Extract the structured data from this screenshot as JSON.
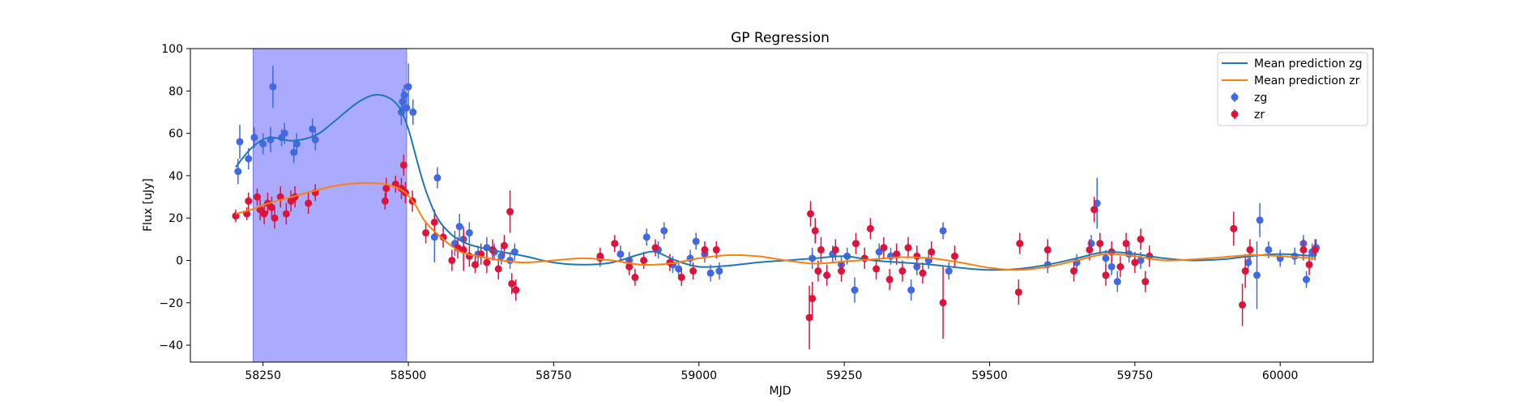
{
  "chart_data": {
    "type": "scatter",
    "title": "GP Regression",
    "xlabel": "MJD",
    "ylabel": "Flux [uJy]",
    "xlim": [
      58125,
      60160
    ],
    "ylim": [
      -48,
      100
    ],
    "xticks": [
      58250,
      58500,
      58750,
      59000,
      59250,
      59500,
      59750,
      60000
    ],
    "yticks": [
      -40,
      -20,
      0,
      20,
      40,
      60,
      80,
      100
    ],
    "grid": false,
    "legend_position": "top-right",
    "shaded_region": {
      "x_start": 58233,
      "x_end": 58497,
      "color": "#aaaaff"
    },
    "series": [
      {
        "name": "Mean prediction zg",
        "kind": "line",
        "color": "#1f77b4",
        "x": [
          58203,
          58230,
          58260,
          58300,
          58340,
          58370,
          58410,
          58440,
          58465,
          58485,
          58500,
          58515,
          58530,
          58550,
          58575,
          58600,
          58625,
          58660,
          58700,
          58750,
          58800,
          58850,
          58900,
          58925,
          58960,
          59000,
          59050,
          59100,
          59150,
          59200,
          59250,
          59300,
          59350,
          59400,
          59450,
          59500,
          59550,
          59600,
          59650,
          59700,
          59750,
          59800,
          59850,
          59900,
          59950,
          60000,
          60060
        ],
        "y": [
          44,
          53,
          58,
          56.5,
          59,
          65,
          74,
          78,
          77,
          72,
          62,
          47,
          33,
          20,
          12,
          8,
          6,
          4,
          2,
          -1,
          -2,
          -1,
          3,
          4,
          0,
          -3,
          -2.5,
          -1,
          0,
          1,
          2,
          0,
          -1,
          -2,
          -3.5,
          -4.5,
          -4,
          -2,
          1,
          4,
          3,
          1,
          0,
          0.5,
          2,
          3,
          2
        ]
      },
      {
        "name": "Mean prediction zr",
        "kind": "line",
        "color": "#ff7f0e",
        "x": [
          58203,
          58230,
          58260,
          58300,
          58340,
          58380,
          58420,
          58460,
          58490,
          58510,
          58530,
          58560,
          58590,
          58620,
          58660,
          58700,
          58750,
          58800,
          58850,
          58900,
          58950,
          59000,
          59050,
          59100,
          59150,
          59200,
          59250,
          59300,
          59350,
          59400,
          59450,
          59500,
          59550,
          59600,
          59650,
          59700,
          59750,
          59800,
          59850,
          59900,
          59950,
          60000,
          60060
        ],
        "y": [
          22,
          24,
          27,
          30,
          33,
          35.5,
          36.5,
          36,
          33,
          27,
          18,
          10,
          4,
          2,
          0,
          -1,
          0,
          1,
          0,
          -2,
          -1.5,
          1,
          2.5,
          2,
          0,
          -1.5,
          -0.5,
          0.5,
          1.5,
          1,
          -1,
          -3.5,
          -4.5,
          -3,
          0,
          3,
          2,
          0,
          0.5,
          1.5,
          2.5,
          2,
          1
        ]
      },
      {
        "name": "zg",
        "kind": "errorbar",
        "color": "#4169e1",
        "points": [
          {
            "x": 58207,
            "y": 42,
            "e": 6
          },
          {
            "x": 58210,
            "y": 56,
            "e": 8
          },
          {
            "x": 58225,
            "y": 48,
            "e": 5
          },
          {
            "x": 58235,
            "y": 58,
            "e": 5
          },
          {
            "x": 58250,
            "y": 55,
            "e": 5
          },
          {
            "x": 58263,
            "y": 57,
            "e": 6
          },
          {
            "x": 58267,
            "y": 82,
            "e": 10
          },
          {
            "x": 58282,
            "y": 58,
            "e": 4
          },
          {
            "x": 58287,
            "y": 60,
            "e": 5
          },
          {
            "x": 58303,
            "y": 51,
            "e": 5
          },
          {
            "x": 58308,
            "y": 55,
            "e": 5
          },
          {
            "x": 58335,
            "y": 62,
            "e": 5
          },
          {
            "x": 58340,
            "y": 57,
            "e": 5
          },
          {
            "x": 58488,
            "y": 70,
            "e": 6
          },
          {
            "x": 58490,
            "y": 75,
            "e": 6
          },
          {
            "x": 58493,
            "y": 78,
            "e": 5
          },
          {
            "x": 58497,
            "y": 72,
            "e": 7
          },
          {
            "x": 58500,
            "y": 82,
            "e": 11
          },
          {
            "x": 58508,
            "y": 70,
            "e": 6
          },
          {
            "x": 58545,
            "y": 11,
            "e": 12
          },
          {
            "x": 58550,
            "y": 39,
            "e": 5
          },
          {
            "x": 58580,
            "y": 8,
            "e": 6
          },
          {
            "x": 58588,
            "y": 16,
            "e": 6
          },
          {
            "x": 58595,
            "y": 10,
            "e": 6
          },
          {
            "x": 58605,
            "y": 13,
            "e": 5
          },
          {
            "x": 58620,
            "y": 3,
            "e": 4
          },
          {
            "x": 58635,
            "y": 6,
            "e": 5
          },
          {
            "x": 58648,
            "y": 4,
            "e": 4
          },
          {
            "x": 58660,
            "y": 2,
            "e": 4
          },
          {
            "x": 58675,
            "y": 0,
            "e": 4
          },
          {
            "x": 58683,
            "y": 4,
            "e": 4
          },
          {
            "x": 58830,
            "y": 1,
            "e": 4
          },
          {
            "x": 58865,
            "y": 3,
            "e": 4
          },
          {
            "x": 58880,
            "y": 0,
            "e": 4
          },
          {
            "x": 58910,
            "y": 11,
            "e": 4
          },
          {
            "x": 58930,
            "y": 5,
            "e": 4
          },
          {
            "x": 58940,
            "y": 14,
            "e": 4
          },
          {
            "x": 58955,
            "y": -2,
            "e": 4
          },
          {
            "x": 58965,
            "y": -4,
            "e": 4
          },
          {
            "x": 58985,
            "y": 1,
            "e": 4
          },
          {
            "x": 58995,
            "y": 9,
            "e": 4
          },
          {
            "x": 59010,
            "y": 3,
            "e": 4
          },
          {
            "x": 59020,
            "y": -6,
            "e": 4
          },
          {
            "x": 59035,
            "y": -5,
            "e": 4
          },
          {
            "x": 59195,
            "y": 1,
            "e": 5
          },
          {
            "x": 59230,
            "y": 3,
            "e": 4
          },
          {
            "x": 59245,
            "y": -2,
            "e": 4
          },
          {
            "x": 59255,
            "y": 2,
            "e": 4
          },
          {
            "x": 59268,
            "y": -14,
            "e": 6
          },
          {
            "x": 59310,
            "y": 4,
            "e": 4
          },
          {
            "x": 59330,
            "y": 2,
            "e": 4
          },
          {
            "x": 59365,
            "y": -14,
            "e": 5
          },
          {
            "x": 59375,
            "y": -3,
            "e": 4
          },
          {
            "x": 59395,
            "y": 0,
            "e": 4
          },
          {
            "x": 59420,
            "y": 14,
            "e": 4
          },
          {
            "x": 59430,
            "y": -5,
            "e": 4
          },
          {
            "x": 59600,
            "y": -2,
            "e": 4
          },
          {
            "x": 59650,
            "y": -1,
            "e": 4
          },
          {
            "x": 59675,
            "y": 8,
            "e": 4
          },
          {
            "x": 59685,
            "y": 27,
            "e": 12
          },
          {
            "x": 59700,
            "y": 1,
            "e": 4
          },
          {
            "x": 59710,
            "y": -3,
            "e": 4
          },
          {
            "x": 59720,
            "y": -10,
            "e": 5
          },
          {
            "x": 59740,
            "y": 3,
            "e": 4
          },
          {
            "x": 59760,
            "y": 0,
            "e": 4
          },
          {
            "x": 59945,
            "y": -1,
            "e": 4
          },
          {
            "x": 59960,
            "y": -7,
            "e": 16
          },
          {
            "x": 59965,
            "y": 19,
            "e": 8
          },
          {
            "x": 59980,
            "y": 5,
            "e": 4
          },
          {
            "x": 60000,
            "y": 1,
            "e": 4
          },
          {
            "x": 60025,
            "y": 2,
            "e": 4
          },
          {
            "x": 60040,
            "y": 8,
            "e": 4
          },
          {
            "x": 60045,
            "y": -9,
            "e": 4
          },
          {
            "x": 60055,
            "y": 4,
            "e": 4
          },
          {
            "x": 60062,
            "y": 6,
            "e": 4
          }
        ]
      },
      {
        "name": "zr",
        "kind": "errorbar",
        "color": "#dc143c",
        "points": [
          {
            "x": 58203,
            "y": 21,
            "e": 3
          },
          {
            "x": 58222,
            "y": 22,
            "e": 3
          },
          {
            "x": 58225,
            "y": 28,
            "e": 4
          },
          {
            "x": 58240,
            "y": 30,
            "e": 4
          },
          {
            "x": 58245,
            "y": 24,
            "e": 5
          },
          {
            "x": 58252,
            "y": 22,
            "e": 5
          },
          {
            "x": 58258,
            "y": 27,
            "e": 5
          },
          {
            "x": 58265,
            "y": 25,
            "e": 5
          },
          {
            "x": 58270,
            "y": 20,
            "e": 5
          },
          {
            "x": 58280,
            "y": 30,
            "e": 5
          },
          {
            "x": 58290,
            "y": 22,
            "e": 5
          },
          {
            "x": 58298,
            "y": 28,
            "e": 5
          },
          {
            "x": 58305,
            "y": 30,
            "e": 5
          },
          {
            "x": 58328,
            "y": 27,
            "e": 5
          },
          {
            "x": 58340,
            "y": 32,
            "e": 4
          },
          {
            "x": 58460,
            "y": 28,
            "e": 4
          },
          {
            "x": 58462,
            "y": 34,
            "e": 5
          },
          {
            "x": 58478,
            "y": 36,
            "e": 4
          },
          {
            "x": 58488,
            "y": 34,
            "e": 5
          },
          {
            "x": 58492,
            "y": 45,
            "e": 5
          },
          {
            "x": 58495,
            "y": 32,
            "e": 5
          },
          {
            "x": 58507,
            "y": 28,
            "e": 5
          },
          {
            "x": 58530,
            "y": 13,
            "e": 5
          },
          {
            "x": 58545,
            "y": 18,
            "e": 6
          },
          {
            "x": 58560,
            "y": 11,
            "e": 5
          },
          {
            "x": 58575,
            "y": 0,
            "e": 5
          },
          {
            "x": 58585,
            "y": 6,
            "e": 5
          },
          {
            "x": 58595,
            "y": 5,
            "e": 10
          },
          {
            "x": 58605,
            "y": 2,
            "e": 5
          },
          {
            "x": 58615,
            "y": -2,
            "e": 4
          },
          {
            "x": 58625,
            "y": 3,
            "e": 5
          },
          {
            "x": 58635,
            "y": -1,
            "e": 5
          },
          {
            "x": 58645,
            "y": 5,
            "e": 5
          },
          {
            "x": 58655,
            "y": -4,
            "e": 5
          },
          {
            "x": 58665,
            "y": 7,
            "e": 5
          },
          {
            "x": 58675,
            "y": 23,
            "e": 10
          },
          {
            "x": 58678,
            "y": -11,
            "e": 5
          },
          {
            "x": 58685,
            "y": -14,
            "e": 5
          },
          {
            "x": 58830,
            "y": 2,
            "e": 4
          },
          {
            "x": 58855,
            "y": 8,
            "e": 4
          },
          {
            "x": 58880,
            "y": -3,
            "e": 4
          },
          {
            "x": 58890,
            "y": -8,
            "e": 4
          },
          {
            "x": 58905,
            "y": 0,
            "e": 4
          },
          {
            "x": 58925,
            "y": 6,
            "e": 4
          },
          {
            "x": 58950,
            "y": -1,
            "e": 4
          },
          {
            "x": 58970,
            "y": -8,
            "e": 4
          },
          {
            "x": 58990,
            "y": -5,
            "e": 4
          },
          {
            "x": 59010,
            "y": 5,
            "e": 4
          },
          {
            "x": 59030,
            "y": 5,
            "e": 4
          },
          {
            "x": 59190,
            "y": -27,
            "e": 15
          },
          {
            "x": 59192,
            "y": 22,
            "e": 6
          },
          {
            "x": 59195,
            "y": -18,
            "e": 8
          },
          {
            "x": 59200,
            "y": 14,
            "e": 6
          },
          {
            "x": 59205,
            "y": -5,
            "e": 5
          },
          {
            "x": 59210,
            "y": 5,
            "e": 6
          },
          {
            "x": 59220,
            "y": -7,
            "e": 5
          },
          {
            "x": 59235,
            "y": 5,
            "e": 5
          },
          {
            "x": 59245,
            "y": -5,
            "e": 5
          },
          {
            "x": 59270,
            "y": 8,
            "e": 5
          },
          {
            "x": 59285,
            "y": 1,
            "e": 5
          },
          {
            "x": 59295,
            "y": 15,
            "e": 5
          },
          {
            "x": 59305,
            "y": -4,
            "e": 5
          },
          {
            "x": 59318,
            "y": 6,
            "e": 5
          },
          {
            "x": 59328,
            "y": -9,
            "e": 5
          },
          {
            "x": 59340,
            "y": 3,
            "e": 5
          },
          {
            "x": 59350,
            "y": -5,
            "e": 5
          },
          {
            "x": 59360,
            "y": 6,
            "e": 5
          },
          {
            "x": 59375,
            "y": 2,
            "e": 5
          },
          {
            "x": 59385,
            "y": -6,
            "e": 5
          },
          {
            "x": 59400,
            "y": 4,
            "e": 5
          },
          {
            "x": 59420,
            "y": -20,
            "e": 17
          },
          {
            "x": 59440,
            "y": 2,
            "e": 5
          },
          {
            "x": 59550,
            "y": -15,
            "e": 6
          },
          {
            "x": 59552,
            "y": 8,
            "e": 5
          },
          {
            "x": 59600,
            "y": 5,
            "e": 5
          },
          {
            "x": 59645,
            "y": -5,
            "e": 5
          },
          {
            "x": 59672,
            "y": 5,
            "e": 5
          },
          {
            "x": 59680,
            "y": 24,
            "e": 6
          },
          {
            "x": 59690,
            "y": 8,
            "e": 5
          },
          {
            "x": 59700,
            "y": -7,
            "e": 5
          },
          {
            "x": 59710,
            "y": 4,
            "e": 5
          },
          {
            "x": 59725,
            "y": -3,
            "e": 5
          },
          {
            "x": 59735,
            "y": 8,
            "e": 5
          },
          {
            "x": 59750,
            "y": -1,
            "e": 5
          },
          {
            "x": 59760,
            "y": 10,
            "e": 5
          },
          {
            "x": 59768,
            "y": -10,
            "e": 5
          },
          {
            "x": 59775,
            "y": 2,
            "e": 5
          },
          {
            "x": 59920,
            "y": 15,
            "e": 8
          },
          {
            "x": 59935,
            "y": -21,
            "e": 10
          },
          {
            "x": 59940,
            "y": -5,
            "e": 8
          },
          {
            "x": 59948,
            "y": 5,
            "e": 5
          },
          {
            "x": 60040,
            "y": 5,
            "e": 5
          },
          {
            "x": 60050,
            "y": -2,
            "e": 5
          },
          {
            "x": 60060,
            "y": 5,
            "e": 5
          }
        ]
      }
    ]
  }
}
